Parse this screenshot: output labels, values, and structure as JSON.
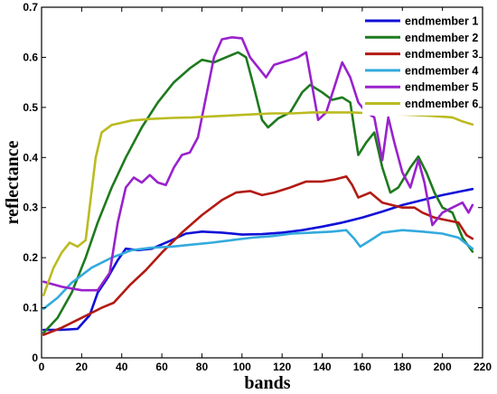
{
  "chart_data": {
    "type": "line",
    "title": "",
    "xlabel": "bands",
    "ylabel": "reflectance",
    "xlim": [
      0,
      220
    ],
    "ylim": [
      0,
      0.7
    ],
    "xticks": [
      0,
      20,
      40,
      60,
      80,
      100,
      120,
      140,
      160,
      180,
      200,
      220
    ],
    "yticks": [
      0,
      0.1,
      0.2,
      0.3,
      0.4,
      0.5,
      0.6,
      0.7
    ],
    "xtick_labels": [
      "0",
      "20",
      "40",
      "60",
      "80",
      "100",
      "120",
      "140",
      "160",
      "180",
      "200",
      "220"
    ],
    "ytick_labels": [
      "0",
      "0.1",
      "0.2",
      "0.3",
      "0.4",
      "0.5",
      "0.6",
      "0.7"
    ],
    "grid": false,
    "legend_position": "top-right",
    "series": [
      {
        "name": "endmember 1",
        "color": "#1010d8",
        "points": [
          [
            1,
            0.056
          ],
          [
            10,
            0.056
          ],
          [
            18,
            0.058
          ],
          [
            24,
            0.085
          ],
          [
            28,
            0.13
          ],
          [
            33,
            0.16
          ],
          [
            38,
            0.195
          ],
          [
            42,
            0.218
          ],
          [
            48,
            0.215
          ],
          [
            55,
            0.218
          ],
          [
            65,
            0.235
          ],
          [
            72,
            0.248
          ],
          [
            80,
            0.252
          ],
          [
            90,
            0.25
          ],
          [
            100,
            0.246
          ],
          [
            110,
            0.247
          ],
          [
            120,
            0.25
          ],
          [
            130,
            0.255
          ],
          [
            140,
            0.262
          ],
          [
            150,
            0.27
          ],
          [
            160,
            0.28
          ],
          [
            170,
            0.292
          ],
          [
            180,
            0.305
          ],
          [
            190,
            0.315
          ],
          [
            200,
            0.325
          ],
          [
            210,
            0.333
          ],
          [
            215,
            0.337
          ]
        ]
      },
      {
        "name": "endmember 2",
        "color": "#1e7a1e",
        "points": [
          [
            1,
            0.05
          ],
          [
            8,
            0.08
          ],
          [
            15,
            0.13
          ],
          [
            22,
            0.2
          ],
          [
            28,
            0.27
          ],
          [
            35,
            0.34
          ],
          [
            42,
            0.4
          ],
          [
            50,
            0.46
          ],
          [
            58,
            0.51
          ],
          [
            66,
            0.55
          ],
          [
            74,
            0.578
          ],
          [
            80,
            0.595
          ],
          [
            86,
            0.59
          ],
          [
            92,
            0.6
          ],
          [
            98,
            0.61
          ],
          [
            102,
            0.6
          ],
          [
            106,
            0.54
          ],
          [
            110,
            0.475
          ],
          [
            113,
            0.46
          ],
          [
            118,
            0.478
          ],
          [
            124,
            0.49
          ],
          [
            130,
            0.53
          ],
          [
            134,
            0.545
          ],
          [
            140,
            0.53
          ],
          [
            145,
            0.515
          ],
          [
            150,
            0.52
          ],
          [
            154,
            0.51
          ],
          [
            158,
            0.405
          ],
          [
            162,
            0.43
          ],
          [
            166,
            0.45
          ],
          [
            170,
            0.38
          ],
          [
            174,
            0.33
          ],
          [
            178,
            0.34
          ],
          [
            184,
            0.38
          ],
          [
            188,
            0.402
          ],
          [
            192,
            0.37
          ],
          [
            196,
            0.33
          ],
          [
            200,
            0.3
          ],
          [
            205,
            0.29
          ],
          [
            210,
            0.24
          ],
          [
            215,
            0.212
          ]
        ]
      },
      {
        "name": "endmember 3",
        "color": "#b31a12",
        "points": [
          [
            1,
            0.046
          ],
          [
            10,
            0.06
          ],
          [
            20,
            0.08
          ],
          [
            30,
            0.1
          ],
          [
            36,
            0.11
          ],
          [
            44,
            0.145
          ],
          [
            52,
            0.175
          ],
          [
            60,
            0.21
          ],
          [
            70,
            0.25
          ],
          [
            80,
            0.285
          ],
          [
            90,
            0.315
          ],
          [
            97,
            0.33
          ],
          [
            104,
            0.333
          ],
          [
            110,
            0.325
          ],
          [
            116,
            0.33
          ],
          [
            124,
            0.34
          ],
          [
            132,
            0.352
          ],
          [
            140,
            0.352
          ],
          [
            146,
            0.356
          ],
          [
            152,
            0.362
          ],
          [
            155,
            0.345
          ],
          [
            158,
            0.32
          ],
          [
            164,
            0.33
          ],
          [
            170,
            0.31
          ],
          [
            180,
            0.3
          ],
          [
            186,
            0.3
          ],
          [
            190,
            0.29
          ],
          [
            196,
            0.28
          ],
          [
            202,
            0.275
          ],
          [
            208,
            0.27
          ],
          [
            212,
            0.245
          ],
          [
            215,
            0.238
          ]
        ]
      },
      {
        "name": "endmember 4",
        "color": "#33aadd",
        "points": [
          [
            1,
            0.098
          ],
          [
            8,
            0.12
          ],
          [
            15,
            0.15
          ],
          [
            25,
            0.18
          ],
          [
            35,
            0.2
          ],
          [
            45,
            0.215
          ],
          [
            55,
            0.22
          ],
          [
            65,
            0.222
          ],
          [
            75,
            0.226
          ],
          [
            85,
            0.23
          ],
          [
            95,
            0.235
          ],
          [
            105,
            0.24
          ],
          [
            115,
            0.243
          ],
          [
            125,
            0.248
          ],
          [
            135,
            0.25
          ],
          [
            145,
            0.252
          ],
          [
            152,
            0.255
          ],
          [
            156,
            0.238
          ],
          [
            159,
            0.222
          ],
          [
            163,
            0.232
          ],
          [
            170,
            0.25
          ],
          [
            180,
            0.255
          ],
          [
            190,
            0.252
          ],
          [
            200,
            0.248
          ],
          [
            208,
            0.24
          ],
          [
            215,
            0.218
          ]
        ]
      },
      {
        "name": "endmember 5",
        "color": "#9922cc",
        "points": [
          [
            1,
            0.152
          ],
          [
            10,
            0.142
          ],
          [
            20,
            0.135
          ],
          [
            28,
            0.135
          ],
          [
            34,
            0.17
          ],
          [
            38,
            0.27
          ],
          [
            42,
            0.34
          ],
          [
            46,
            0.36
          ],
          [
            50,
            0.35
          ],
          [
            54,
            0.365
          ],
          [
            58,
            0.35
          ],
          [
            62,
            0.345
          ],
          [
            66,
            0.38
          ],
          [
            70,
            0.405
          ],
          [
            74,
            0.41
          ],
          [
            78,
            0.44
          ],
          [
            82,
            0.52
          ],
          [
            86,
            0.6
          ],
          [
            90,
            0.636
          ],
          [
            95,
            0.64
          ],
          [
            100,
            0.638
          ],
          [
            104,
            0.6
          ],
          [
            108,
            0.58
          ],
          [
            112,
            0.56
          ],
          [
            116,
            0.585
          ],
          [
            120,
            0.59
          ],
          [
            124,
            0.595
          ],
          [
            128,
            0.6
          ],
          [
            132,
            0.61
          ],
          [
            136,
            0.52
          ],
          [
            138,
            0.475
          ],
          [
            142,
            0.49
          ],
          [
            146,
            0.54
          ],
          [
            150,
            0.59
          ],
          [
            154,
            0.56
          ],
          [
            158,
            0.51
          ],
          [
            162,
            0.49
          ],
          [
            166,
            0.48
          ],
          [
            170,
            0.395
          ],
          [
            173,
            0.48
          ],
          [
            176,
            0.43
          ],
          [
            180,
            0.37
          ],
          [
            184,
            0.34
          ],
          [
            188,
            0.395
          ],
          [
            191,
            0.35
          ],
          [
            195,
            0.265
          ],
          [
            200,
            0.29
          ],
          [
            205,
            0.3
          ],
          [
            210,
            0.31
          ],
          [
            213,
            0.29
          ],
          [
            215,
            0.305
          ]
        ]
      },
      {
        "name": "endmember 6",
        "color": "#bbbb22",
        "points": [
          [
            1,
            0.125
          ],
          [
            6,
            0.18
          ],
          [
            10,
            0.21
          ],
          [
            14,
            0.23
          ],
          [
            18,
            0.222
          ],
          [
            22,
            0.235
          ],
          [
            24,
            0.3
          ],
          [
            27,
            0.4
          ],
          [
            30,
            0.45
          ],
          [
            35,
            0.465
          ],
          [
            45,
            0.474
          ],
          [
            55,
            0.477
          ],
          [
            65,
            0.479
          ],
          [
            75,
            0.48
          ],
          [
            85,
            0.482
          ],
          [
            95,
            0.484
          ],
          [
            105,
            0.486
          ],
          [
            115,
            0.488
          ],
          [
            125,
            0.488
          ],
          [
            135,
            0.49
          ],
          [
            145,
            0.49
          ],
          [
            155,
            0.49
          ],
          [
            165,
            0.488
          ],
          [
            175,
            0.487
          ],
          [
            185,
            0.485
          ],
          [
            195,
            0.483
          ],
          [
            205,
            0.48
          ],
          [
            210,
            0.472
          ],
          [
            215,
            0.466
          ]
        ]
      }
    ]
  }
}
